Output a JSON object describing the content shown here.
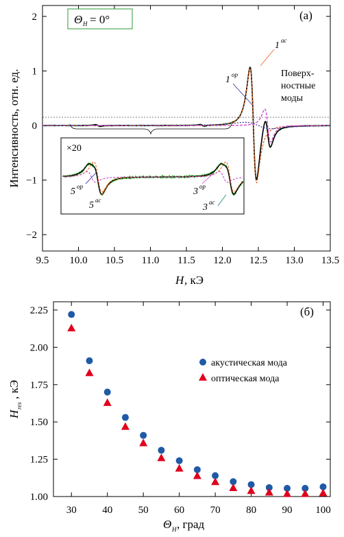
{
  "chart_data": [
    {
      "type": "line",
      "panel_label": "(а)",
      "badge": {
        "symbol": "Θ",
        "sub": "H",
        "value": "= 0°"
      },
      "xlabel": {
        "symbol": "H",
        "unit": ", кЭ"
      },
      "ylabel": "Интенсивность, отн. ед.",
      "xlim": [
        9.5,
        13.5
      ],
      "ylim": [
        -2.3,
        2.2
      ],
      "xticks": [
        "9.5",
        "10.0",
        "10.5",
        "11.0",
        "11.5",
        "12.0",
        "12.5",
        "13.0",
        "13.5"
      ],
      "yticks": [
        "2",
        "1",
        "0",
        "−1",
        "−2"
      ],
      "annotations": {
        "mode1ac": "1",
        "mode1ac_sup": "ac",
        "mode1op": "1",
        "mode1op_sup": "op",
        "surface_line1": "Поверх-",
        "surface_line2": "ностные",
        "surface_line3": "моды"
      },
      "inset": {
        "scale": "×20",
        "labels": [
          {
            "n": "5",
            "sup": "op"
          },
          {
            "n": "5",
            "sup": "ac"
          },
          {
            "n": "3",
            "sup": "op"
          },
          {
            "n": "3",
            "sup": "ac"
          }
        ]
      },
      "series": [
        {
          "role": "main-resonance",
          "color": "#000000",
          "x0": 12.43,
          "amplitude": 2.15,
          "width": 0.045
        },
        {
          "role": "surface-mode",
          "color": "#000000",
          "x0": 12.63,
          "amplitude": 0.62,
          "width": 0.04
        },
        {
          "role": "mode-5",
          "color": "#000000",
          "x0": 10.27,
          "amplitude": 0.03,
          "width": 0.03
        },
        {
          "role": "mode-3",
          "color": "#000000",
          "x0": 11.72,
          "amplitude": 0.03,
          "width": 0.03
        }
      ],
      "colors": {
        "acoustic_fit": "#e8601c",
        "optical_fit": "#2b2b9b",
        "surface_fit": "#cc44cc",
        "data": "#22aa22",
        "inset_fit": "#1e7f7f"
      }
    },
    {
      "type": "scatter",
      "panel_label": "(б)",
      "xlabel": {
        "symbol": "Θ",
        "sub": "H",
        "unit": ", град"
      },
      "ylabel": {
        "symbol": "H",
        "sub": "res",
        "unit": ", кЭ"
      },
      "xlim": [
        25,
        102
      ],
      "ylim": [
        1.0,
        2.25
      ],
      "xticks": [
        "30",
        "40",
        "50",
        "60",
        "70",
        "80",
        "90",
        "100"
      ],
      "yticks": [
        "2.25",
        "2.00",
        "1.75",
        "1.50",
        "1.25",
        "1.00"
      ],
      "x": [
        30,
        35,
        40,
        45,
        50,
        55,
        60,
        65,
        70,
        75,
        80,
        85,
        90,
        95,
        100
      ],
      "series": [
        {
          "name": "акустическая мода",
          "color": "#1f5aa6",
          "marker": "circle",
          "values": [
            2.22,
            1.91,
            1.7,
            1.53,
            1.41,
            1.31,
            1.24,
            1.18,
            1.14,
            1.1,
            1.08,
            1.06,
            1.055,
            1.055,
            1.065
          ]
        },
        {
          "name": "оптическая мода",
          "color": "#e0001b",
          "marker": "triangle",
          "values": [
            2.13,
            1.83,
            1.63,
            1.47,
            1.36,
            1.26,
            1.19,
            1.14,
            1.1,
            1.06,
            1.04,
            1.03,
            1.02,
            1.02,
            1.025
          ]
        }
      ]
    }
  ]
}
